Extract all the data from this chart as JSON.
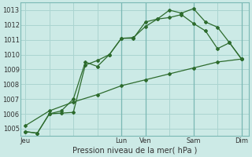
{
  "bg_color": "#cceae6",
  "grid_color": "#aad4d0",
  "line_color": "#2d6b2d",
  "xlabel": "Pression niveau de la mer( hPa )",
  "ylim": [
    1004.5,
    1013.5
  ],
  "yticks": [
    1005,
    1006,
    1007,
    1008,
    1009,
    1010,
    1011,
    1012,
    1013
  ],
  "xtick_labels": [
    "Jeu",
    "",
    "",
    "",
    "Lun",
    "Ven",
    "",
    "Sam",
    "",
    "Dim"
  ],
  "xtick_positions": [
    0,
    1,
    2,
    3,
    4,
    5,
    6,
    7,
    8,
    9
  ],
  "xlim": [
    -0.2,
    9.3
  ],
  "lines": [
    {
      "x": [
        0,
        0.5,
        1,
        1.5,
        2,
        2.5,
        3,
        3.5,
        4,
        4.5,
        5,
        5.5,
        6,
        6.5,
        7,
        7.5,
        8,
        8.5,
        9
      ],
      "y": [
        1004.8,
        1004.7,
        1006.0,
        1006.05,
        1006.1,
        1009.3,
        1009.6,
        1010.0,
        1011.1,
        1011.1,
        1012.2,
        1012.4,
        1013.0,
        1012.8,
        1013.1,
        1012.2,
        1011.85,
        1010.8,
        1009.7
      ]
    },
    {
      "x": [
        0,
        0.5,
        1,
        1.5,
        2,
        2.5,
        3,
        3.5,
        4,
        4.5,
        5,
        5.5,
        6,
        6.5,
        7,
        7.5,
        8,
        8.5,
        9
      ],
      "y": [
        1004.8,
        1004.7,
        1006.0,
        1006.2,
        1007.0,
        1009.5,
        1009.2,
        1010.0,
        1011.1,
        1011.15,
        1011.9,
        1012.4,
        1012.5,
        1012.7,
        1012.1,
        1011.6,
        1010.4,
        1010.8,
        1009.7
      ]
    },
    {
      "x": [
        0,
        1,
        2,
        3,
        4,
        5,
        6,
        7,
        8,
        9
      ],
      "y": [
        1005.2,
        1006.2,
        1006.8,
        1007.3,
        1007.9,
        1008.3,
        1008.7,
        1009.1,
        1009.5,
        1009.7
      ]
    }
  ],
  "marker": "D",
  "marker_size": 2.0,
  "line_width": 0.9,
  "vline_positions": [
    4,
    5,
    7,
    9
  ],
  "vline_color": "#7ab8b4",
  "tick_fontsize": 6,
  "xlabel_fontsize": 7
}
